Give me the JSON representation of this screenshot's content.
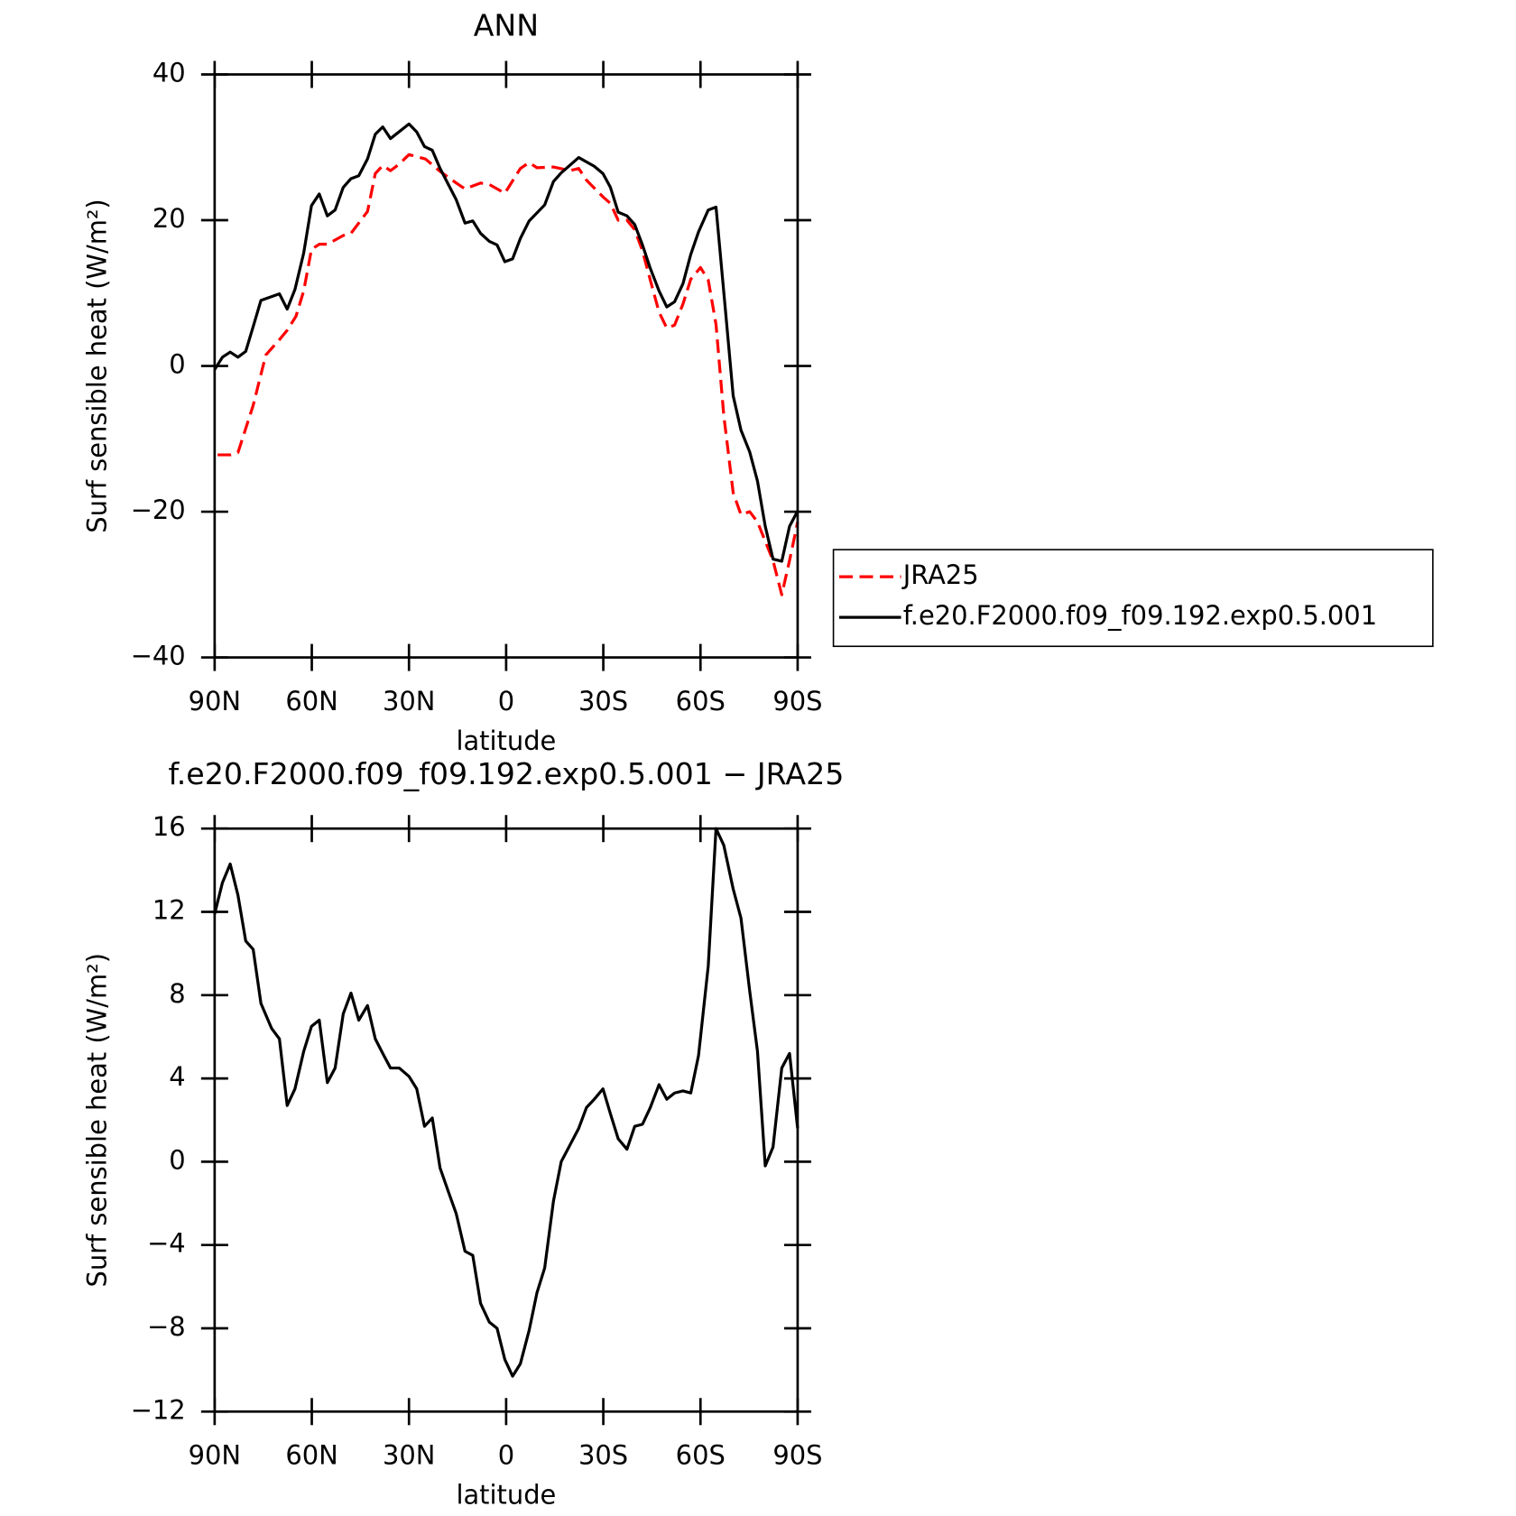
{
  "chart_data": [
    {
      "type": "line",
      "title": "ANN",
      "xlabel": "latitude",
      "ylabel": "Surf sensible heat (W/m²)",
      "xlim": [
        90,
        -90
      ],
      "xticks": [
        {
          "value": 90,
          "label": "90N"
        },
        {
          "value": 60,
          "label": "60N"
        },
        {
          "value": 30,
          "label": "30N"
        },
        0,
        {
          "value": -30,
          "label": "30S"
        },
        {
          "value": -60,
          "label": "60S"
        },
        {
          "value": -90,
          "label": "90S"
        }
      ],
      "ylim": [
        -40,
        40
      ],
      "yticks": [
        {
          "value": -40,
          "label": "−40"
        },
        {
          "value": -20,
          "label": "−20"
        },
        0,
        20,
        40
      ],
      "legend": "right",
      "series": [
        {
          "name": "JRA25",
          "color": "#ff0000",
          "line_style": "dashed",
          "x": [
            89.1,
            85.2,
            82.8,
            78.1,
            74.2,
            70,
            67.6,
            64.9,
            62.5,
            60.1,
            57.7,
            55.2,
            50.3,
            47.9,
            42.8,
            40.4,
            38.1,
            35.7,
            33,
            30,
            24.9,
            20.4,
            15.4,
            12.7,
            7.9,
            5.2,
            0.4,
            -4.4,
            -7.1,
            -9.5,
            -14.6,
            -19.7,
            -22.4,
            -24.8,
            -29.9,
            -32.2,
            -34.6,
            -37.3,
            -39.7,
            -42.1,
            -44.5,
            -47.2,
            -49.6,
            -52,
            -54.6,
            -57,
            -60,
            -62.4,
            -64.8,
            -67.2,
            -70.1,
            -72.5,
            -75.2,
            -77.6,
            -82.4,
            -85.1,
            -87.5,
            -90
          ],
          "values": [
            -12.2,
            -12.2,
            -11.9,
            -5.4,
            1.5,
            3.6,
            4.9,
            6.8,
            10.3,
            16,
            16.7,
            16.7,
            17.9,
            18.2,
            21.2,
            26.4,
            27.5,
            26.8,
            27.7,
            29,
            28.4,
            26.7,
            25.1,
            24.3,
            25.1,
            24.9,
            23.7,
            27.1,
            27.9,
            27.2,
            27.3,
            26.8,
            27.1,
            25.5,
            23.2,
            22.3,
            20,
            20,
            18.7,
            15.8,
            11.8,
            7.4,
            5.2,
            5.6,
            8.5,
            11.9,
            13.5,
            11.8,
            5.7,
            -6.8,
            -17.4,
            -20.4,
            -20,
            -21.4,
            -26.7,
            -31.4,
            -26.7,
            -21.4
          ]
        },
        {
          "name": "f.e20.F2000.f09_f09.192.exp0.5.001",
          "color": "#000000",
          "line_style": "solid",
          "x": [
            90,
            87.6,
            85.2,
            82.8,
            80.4,
            78.1,
            75.7,
            70,
            67.6,
            65.2,
            62.5,
            60.1,
            57.7,
            55.2,
            52.8,
            50.3,
            47.9,
            45.5,
            42.8,
            40.4,
            38.1,
            35.7,
            30,
            27.6,
            25.2,
            22.8,
            20.4,
            15.4,
            12.7,
            10.3,
            7.9,
            5.2,
            2.8,
            0.4,
            -2,
            -4.4,
            -7.1,
            -9.5,
            -11.9,
            -14.6,
            -17,
            -22.4,
            -27.2,
            -29.9,
            -32.2,
            -34.6,
            -37.3,
            -39.7,
            -42.1,
            -44.5,
            -47.2,
            -49.6,
            -52,
            -54.6,
            -57,
            -59.4,
            -62.4,
            -64.8,
            -67.8,
            -70.1,
            -72.5,
            -75.2,
            -77.6,
            -80,
            -82.4,
            -85.1,
            -87.5,
            -90
          ],
          "values": [
            -0.5,
            1.2,
            1.9,
            1.2,
            2,
            5.4,
            9,
            9.9,
            7.8,
            10.5,
            15.5,
            22,
            23.6,
            20.6,
            21.4,
            24.5,
            25.7,
            26.1,
            28.4,
            31.8,
            32.8,
            31.2,
            33.2,
            32.1,
            30.1,
            29.6,
            27.1,
            22.8,
            19.6,
            19.9,
            18.2,
            17.1,
            16.6,
            14.3,
            14.7,
            17.5,
            19.9,
            21,
            22.1,
            25.3,
            26.5,
            28.6,
            27.4,
            26.4,
            24.5,
            21.1,
            20.6,
            19.4,
            16.6,
            13.4,
            10.3,
            8.1,
            8.8,
            11.3,
            15.3,
            18.4,
            21.4,
            21.8,
            7.2,
            -4.1,
            -8.8,
            -11.8,
            -15.8,
            -22,
            -26.5,
            -26.8,
            -22,
            -19.9
          ]
        }
      ]
    },
    {
      "type": "line",
      "title": "f.e20.F2000.f09_f09.192.exp0.5.001 − JRA25",
      "xlabel": "latitude",
      "ylabel": "Surf sensible heat (W/m²)",
      "xlim": [
        90,
        -90
      ],
      "xticks": [
        {
          "value": 90,
          "label": "90N"
        },
        {
          "value": 60,
          "label": "60N"
        },
        {
          "value": 30,
          "label": "30N"
        },
        0,
        {
          "value": -30,
          "label": "30S"
        },
        {
          "value": -60,
          "label": "60S"
        },
        {
          "value": -90,
          "label": "90S"
        }
      ],
      "ylim": [
        -12,
        16
      ],
      "yticks": [
        {
          "value": -12,
          "label": "−12"
        },
        {
          "value": -8,
          "label": "−8"
        },
        {
          "value": -4,
          "label": "−4"
        },
        0,
        4,
        8,
        12,
        16
      ],
      "series": [
        {
          "color": "#000000",
          "line_style": "solid",
          "x": [
            90,
            87.6,
            85.2,
            82.8,
            80.4,
            78.1,
            75.7,
            72.4,
            70,
            67.6,
            65.2,
            62.5,
            60.1,
            57.7,
            55.2,
            52.8,
            50.3,
            47.9,
            45.5,
            42.8,
            40.4,
            38.1,
            35.7,
            33,
            30,
            27.6,
            25.2,
            22.8,
            20.4,
            17.7,
            15.4,
            12.7,
            10.3,
            7.9,
            5.2,
            2.8,
            0.4,
            -2,
            -4.4,
            -7.1,
            -9.5,
            -11.9,
            -14.6,
            -17,
            -19.7,
            -22.4,
            -24.8,
            -27.2,
            -29.9,
            -32.2,
            -34.6,
            -37.3,
            -39.7,
            -42.1,
            -44.5,
            -47.2,
            -49.6,
            -52,
            -54.6,
            -57,
            -59.4,
            -62.4,
            -64.8,
            -67.2,
            -70.1,
            -72.5,
            -75.2,
            -77.6,
            -80,
            -82.4,
            -85.1,
            -87.5,
            -90
          ],
          "values": [
            11.9,
            13.4,
            14.3,
            12.8,
            10.6,
            10.2,
            7.6,
            6.4,
            5.9,
            2.7,
            3.5,
            5.3,
            6.5,
            6.8,
            3.8,
            4.5,
            7.1,
            8.1,
            6.8,
            7.5,
            5.9,
            5.2,
            4.5,
            4.5,
            4.1,
            3.5,
            1.7,
            2.1,
            -0.3,
            -1.5,
            -2.5,
            -4.3,
            -4.5,
            -6.8,
            -7.7,
            -8,
            -9.5,
            -10.3,
            -9.7,
            -8.1,
            -6.3,
            -5.1,
            -1.9,
            0,
            0.8,
            1.6,
            2.6,
            3,
            3.5,
            2.3,
            1.1,
            0.6,
            1.7,
            1.8,
            2.6,
            3.7,
            3,
            3.3,
            3.4,
            3.3,
            5.1,
            9.4,
            16,
            15.2,
            13.1,
            11.7,
            8.2,
            5.3,
            -0.2,
            0.7,
            4.5,
            5.2,
            1.6
          ]
        }
      ]
    }
  ]
}
